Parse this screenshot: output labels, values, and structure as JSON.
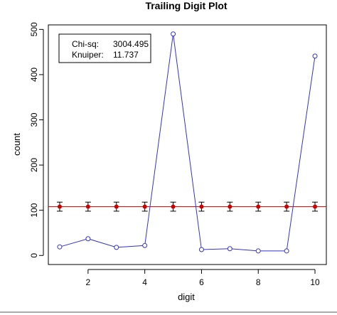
{
  "chart_data": {
    "type": "line",
    "title": "Trailing Digit Plot",
    "xlabel": "digit",
    "ylabel": "count",
    "x": [
      1,
      2,
      3,
      4,
      5,
      6,
      7,
      8,
      9,
      10
    ],
    "xlim": [
      0.6,
      10.4
    ],
    "ylim": [
      -20,
      510
    ],
    "xticks": [
      2,
      4,
      6,
      8,
      10
    ],
    "yticks": [
      0,
      100,
      200,
      300,
      400,
      500
    ],
    "grid": false,
    "series": [
      {
        "kind": "observed",
        "color": "#3333cc",
        "values": [
          19,
          37,
          18,
          22,
          490,
          13,
          15,
          10,
          10,
          441
        ]
      },
      {
        "kind": "expected",
        "color": "#cc0000",
        "expected": 108,
        "values": [
          108,
          108,
          108,
          108,
          108,
          108,
          108,
          108,
          108,
          108
        ],
        "err_low": [
          98,
          98,
          98,
          98,
          98,
          98,
          98,
          98,
          98,
          98
        ],
        "err_high": [
          118,
          118,
          118,
          118,
          118,
          118,
          118,
          118,
          118,
          118
        ]
      }
    ],
    "legend": {
      "placement": "top-left",
      "rows": [
        {
          "label": "Chi-sq:",
          "value": "3004.495"
        },
        {
          "label": "Knuiper:",
          "value": "11.737"
        }
      ]
    }
  }
}
